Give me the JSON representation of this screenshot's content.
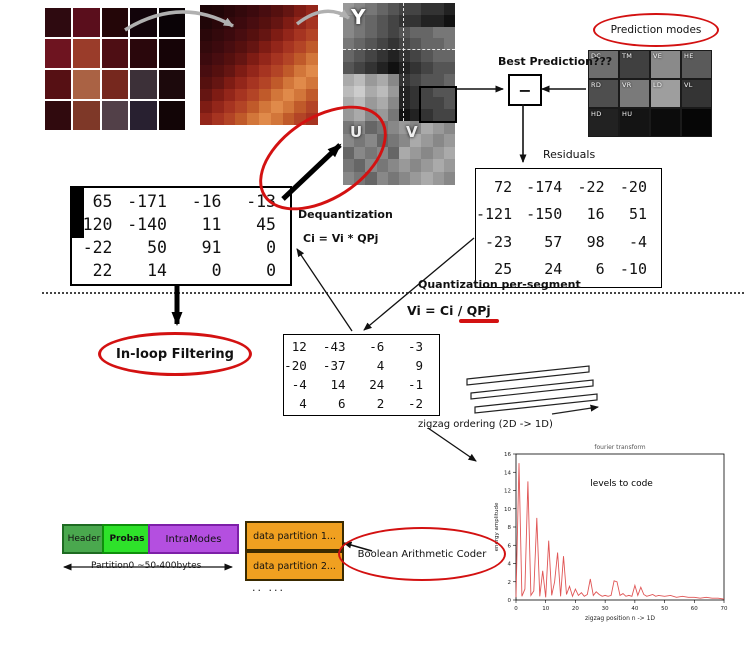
{
  "colors": {
    "accent_red": "#d31111",
    "orange": "#f0a020",
    "green_header": "#4aa84e",
    "green_probas": "#2ee22a",
    "purple": "#b44fe0"
  },
  "photo": {
    "grid": [
      [
        "#2e0a10",
        "#5a0e1c",
        "#240608",
        "#12040a",
        "#0a0306"
      ],
      [
        "#6e1420",
        "#9a3c2a",
        "#4e0e14",
        "#2a070c",
        "#160407"
      ],
      [
        "#561014",
        "#aa6244",
        "#76281e",
        "#3c3038",
        "#1c090c"
      ],
      [
        "#300a0e",
        "#7e3828",
        "#524048",
        "#282030",
        "#120506"
      ]
    ]
  },
  "pixelated": {
    "grid": [
      [
        "#1c0507",
        "#200608",
        "#2a070a",
        "#33090c",
        "#3c0a0e",
        "#480d10",
        "#55100f",
        "#651512",
        "#7e1c14",
        "#93261a"
      ],
      [
        "#200608",
        "#2a070a",
        "#33090c",
        "#3c0a0e",
        "#480d10",
        "#55100f",
        "#651512",
        "#7e1c14",
        "#93261a",
        "#a63421"
      ],
      [
        "#2a070a",
        "#33090c",
        "#3c0a0e",
        "#480d10",
        "#55100f",
        "#651512",
        "#7e1c14",
        "#93261a",
        "#a63421",
        "#b34426"
      ],
      [
        "#33090c",
        "#3c0a0e",
        "#480d10",
        "#55100f",
        "#651512",
        "#7e1c14",
        "#93261a",
        "#a63421",
        "#b34426",
        "#c05a2a"
      ],
      [
        "#3c0a0e",
        "#480d10",
        "#55100f",
        "#651512",
        "#7e1c14",
        "#93261a",
        "#a63421",
        "#b34426",
        "#c05a2a",
        "#d2763a"
      ],
      [
        "#480d10",
        "#55100f",
        "#651512",
        "#7e1c14",
        "#93261a",
        "#a63421",
        "#b34426",
        "#c05a2a",
        "#d2763a",
        "#e08a4a"
      ],
      [
        "#55100f",
        "#651512",
        "#7e1c14",
        "#93261a",
        "#a63421",
        "#b34426",
        "#c05a2a",
        "#d2763a",
        "#e08a4a",
        "#d2763a"
      ],
      [
        "#651512",
        "#7e1c14",
        "#93261a",
        "#a63421",
        "#b34426",
        "#c05a2a",
        "#d2763a",
        "#e08a4a",
        "#d2763a",
        "#c05a2a"
      ],
      [
        "#7e1c14",
        "#93261a",
        "#a63421",
        "#b34426",
        "#c05a2a",
        "#d2763a",
        "#e08a4a",
        "#d2763a",
        "#c05a2a",
        "#b34426"
      ],
      [
        "#93261a",
        "#a63421",
        "#b34426",
        "#c05a2a",
        "#d2763a",
        "#e08a4a",
        "#d2763a",
        "#c05a2a",
        "#b34426",
        "#a63421"
      ]
    ]
  },
  "y_plane": {
    "label": "Y",
    "grid": [
      [
        "#999",
        "#888",
        "#777",
        "#666",
        "#555",
        "#444",
        "#444",
        "#333",
        "#333",
        "#222"
      ],
      [
        "#888",
        "#777",
        "#666",
        "#555",
        "#444",
        "#333",
        "#333",
        "#222",
        "#222",
        "#111"
      ],
      [
        "#888",
        "#777",
        "#666",
        "#555",
        "#444",
        "#555",
        "#666",
        "#666",
        "#777",
        "#777"
      ],
      [
        "#777",
        "#666",
        "#555",
        "#444",
        "#333",
        "#444",
        "#555",
        "#666",
        "#666",
        "#777"
      ],
      [
        "#666",
        "#555",
        "#444",
        "#333",
        "#222",
        "#333",
        "#444",
        "#555",
        "#666",
        "#666"
      ],
      [
        "#555",
        "#444",
        "#333",
        "#222",
        "#111",
        "#222",
        "#333",
        "#444",
        "#555",
        "#555"
      ],
      [
        "#aaa",
        "#bbb",
        "#999",
        "#aaa",
        "#888",
        "#333",
        "#444",
        "#555",
        "#555",
        "#666"
      ],
      [
        "#bbb",
        "#ccc",
        "#aaa",
        "#bbb",
        "#999",
        "#222",
        "#333",
        "#444",
        "#555",
        "#555"
      ],
      [
        "#aaa",
        "#bbb",
        "#999",
        "#aaa",
        "#888",
        "#222",
        "#333",
        "#444",
        "#444",
        "#555"
      ],
      [
        "#999",
        "#aaa",
        "#888",
        "#999",
        "#777",
        "#111",
        "#222",
        "#333",
        "#444",
        "#444"
      ]
    ]
  },
  "u_plane": {
    "label": "U",
    "grid": [
      [
        "#777",
        "#888",
        "#666",
        "#777",
        "#888"
      ],
      [
        "#888",
        "#777",
        "#888",
        "#666",
        "#777"
      ],
      [
        "#666",
        "#888",
        "#777",
        "#888",
        "#666"
      ],
      [
        "#777",
        "#666",
        "#888",
        "#777",
        "#888"
      ],
      [
        "#888",
        "#777",
        "#666",
        "#888",
        "#777"
      ]
    ]
  },
  "v_plane": {
    "label": "V",
    "grid": [
      [
        "#999",
        "#888",
        "#aaa",
        "#999",
        "#888"
      ],
      [
        "#888",
        "#aaa",
        "#999",
        "#888",
        "#999"
      ],
      [
        "#aaa",
        "#999",
        "#888",
        "#999",
        "#aaa"
      ],
      [
        "#999",
        "#888",
        "#999",
        "#aaa",
        "#999"
      ],
      [
        "#888",
        "#999",
        "#aaa",
        "#999",
        "#888"
      ]
    ]
  },
  "prediction": {
    "ellipse_label": "Prediction modes",
    "best_label": "Best Prediction???",
    "minus_sign": "−",
    "modes": [
      {
        "label": "DC",
        "color": "#6e6e6e"
      },
      {
        "label": "TM",
        "color": "#404040"
      },
      {
        "label": "VE",
        "color": "#8a8a8a"
      },
      {
        "label": "HE",
        "color": "#5a5a5a"
      },
      {
        "label": "RD",
        "color": "#4e4e4e"
      },
      {
        "label": "VR",
        "color": "#7a7a7a"
      },
      {
        "label": "LD",
        "color": "#9e9e9e"
      },
      {
        "label": "VL",
        "color": "#343434"
      },
      {
        "label": "HD",
        "color": "#222222"
      },
      {
        "label": "HU",
        "color": "#141414"
      },
      {
        "label": "",
        "color": "#0c0c0c"
      },
      {
        "label": "",
        "color": "#060606"
      }
    ]
  },
  "residuals": {
    "label": "Residuals",
    "matrix": [
      [
        72,
        -174,
        -22,
        -20
      ],
      [
        -121,
        -150,
        16,
        51
      ],
      [
        -23,
        57,
        98,
        -4
      ],
      [
        25,
        24,
        6,
        -10
      ]
    ]
  },
  "dequant": {
    "label": "Dequantization",
    "formula": "Ci = Vi * QPj",
    "matrix": [
      [
        65,
        -171,
        -16,
        -13
      ],
      [
        -120,
        -140,
        11,
        45
      ],
      [
        -22,
        50,
        91,
        0
      ],
      [
        22,
        14,
        0,
        0
      ]
    ]
  },
  "quant": {
    "label": "Quantization per-segment",
    "formula": "Vi = Ci / QPj",
    "matrix": [
      [
        12,
        -43,
        -6,
        -3
      ],
      [
        -20,
        -37,
        4,
        9
      ],
      [
        -4,
        14,
        24,
        -1
      ],
      [
        4,
        6,
        2,
        -2
      ]
    ]
  },
  "inloop": {
    "label": "In-loop Filtering"
  },
  "zigzag": {
    "label": "zigzag ordering  (2D -> 1D)"
  },
  "partitions": {
    "header": "Header",
    "probas": "Probas",
    "intramodes": "IntraModes",
    "partition0": "Partition0 ~50-400bytes",
    "dp1": "data partition 1...",
    "dp2": "data partition 2...",
    "more": ".. ...",
    "bac": "Boolean Arithmetic Coder"
  },
  "chart_data": {
    "type": "line",
    "title": "fourier transform",
    "xlabel": "zigzag position   n -> 1D",
    "ylabel": "energy amplitude",
    "annotation": "levels to code",
    "annotation_x": 25,
    "annotation_y": 12.5,
    "line_color": "#e05555",
    "xlim": [
      0,
      70
    ],
    "ylim": [
      0,
      16
    ],
    "xticks": [
      0,
      10,
      20,
      30,
      40,
      50,
      60,
      70
    ],
    "yticks": [
      0,
      2,
      4,
      6,
      8,
      10,
      12,
      14,
      16
    ],
    "x": [
      0,
      1,
      2,
      3,
      4,
      5,
      6,
      7,
      8,
      9,
      10,
      11,
      12,
      13,
      14,
      15,
      16,
      17,
      18,
      19,
      20,
      21,
      22,
      23,
      24,
      25,
      26,
      27,
      28,
      29,
      30,
      31,
      32,
      33,
      34,
      35,
      36,
      37,
      38,
      39,
      40,
      41,
      42,
      43,
      44,
      45,
      46,
      47,
      48,
      50,
      52,
      54,
      56,
      58,
      60,
      62,
      64,
      66,
      68,
      70
    ],
    "y": [
      0.3,
      15,
      0.4,
      1.2,
      13,
      0.5,
      1.0,
      9,
      0.4,
      3.2,
      0.3,
      6.5,
      0.5,
      2.0,
      5.2,
      0.4,
      4.8,
      0.6,
      1.5,
      0.4,
      1.2,
      0.5,
      0.8,
      0.4,
      0.6,
      2.3,
      0.5,
      0.9,
      0.6,
      0.4,
      0.5,
      0.4,
      0.5,
      2.1,
      2.0,
      0.5,
      0.7,
      0.4,
      0.5,
      0.4,
      1.6,
      0.5,
      1.4,
      0.6,
      0.4,
      0.5,
      0.6,
      0.4,
      0.5,
      0.4,
      0.5,
      0.3,
      0.4,
      0.3,
      0.3,
      0.2,
      0.3,
      0.2,
      0.2,
      0.1
    ]
  }
}
